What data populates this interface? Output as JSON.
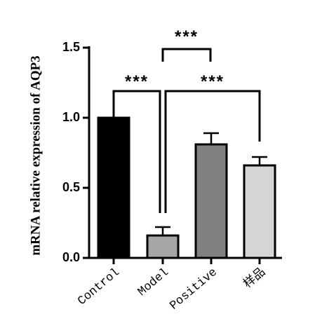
{
  "chart_data": {
    "type": "bar",
    "y_label": "mRNA relative expression of  AQP3",
    "categories": [
      "Control",
      "Model",
      "Positive",
      "样品"
    ],
    "values": [
      1.0,
      0.16,
      0.81,
      0.66
    ],
    "errors": [
      0,
      0.06,
      0.08,
      0.06
    ],
    "colors": [
      "#000000",
      "#a6a6a6",
      "#808080",
      "#d6d6d6"
    ],
    "ylim": [
      0,
      1.5
    ],
    "yticks": [
      {
        "value": 0,
        "label": "0.0"
      },
      {
        "value": 0.5,
        "label": "0.5"
      },
      {
        "value": 1,
        "label": "1.0"
      },
      {
        "value": 1.5,
        "label": "1.5"
      }
    ],
    "annotations": [
      "***",
      "***",
      "***"
    ]
  }
}
